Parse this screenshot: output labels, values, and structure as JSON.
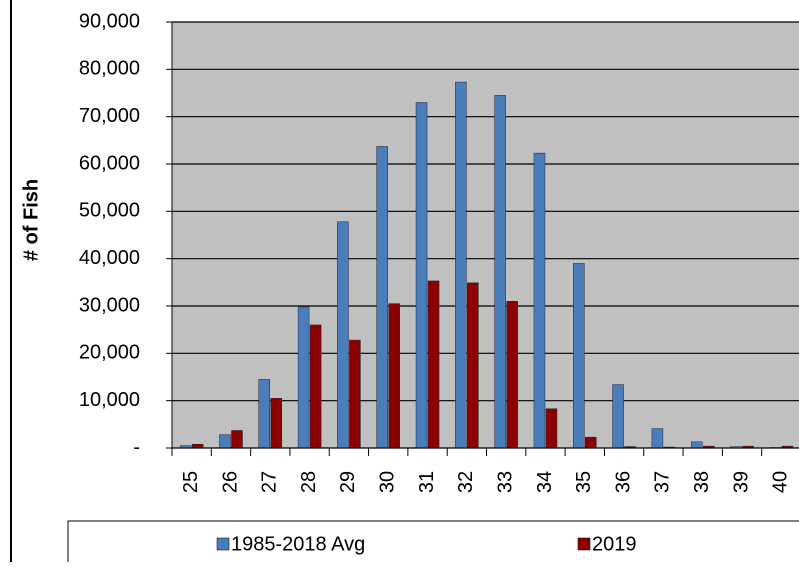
{
  "chart_data": {
    "type": "bar",
    "y_label": "# of Fish",
    "categories": [
      "25",
      "26",
      "27",
      "28",
      "29",
      "30",
      "31",
      "32",
      "33",
      "34",
      "35",
      "36",
      "37",
      "38",
      "39",
      "40"
    ],
    "series": [
      {
        "name": "1985-2018 Avg",
        "color": "#4a7ebb",
        "values": [
          500,
          2800,
          14500,
          29800,
          47800,
          63700,
          73000,
          77300,
          74500,
          62300,
          39000,
          13400,
          4100,
          1300,
          300,
          100
        ]
      },
      {
        "name": "2019",
        "color": "#8b0000",
        "values": [
          800,
          3700,
          10500,
          26000,
          22800,
          30500,
          35300,
          34900,
          31000,
          8300,
          2300,
          300,
          200,
          400,
          400,
          400
        ]
      }
    ],
    "ylim": [
      0,
      90000
    ],
    "yticks": [
      {
        "value": 0,
        "label": "-"
      },
      {
        "value": 10000,
        "label": "10,000"
      },
      {
        "value": 20000,
        "label": "20,000"
      },
      {
        "value": 30000,
        "label": "30,000"
      },
      {
        "value": 40000,
        "label": "40,000"
      },
      {
        "value": 50000,
        "label": "50,000"
      },
      {
        "value": 60000,
        "label": "60,000"
      },
      {
        "value": 70000,
        "label": "70,000"
      },
      {
        "value": 80000,
        "label": "80,000"
      },
      {
        "value": 90000,
        "label": "90,000"
      }
    ],
    "grid": true,
    "background": "#c0c0c0",
    "legend": "bottom"
  }
}
